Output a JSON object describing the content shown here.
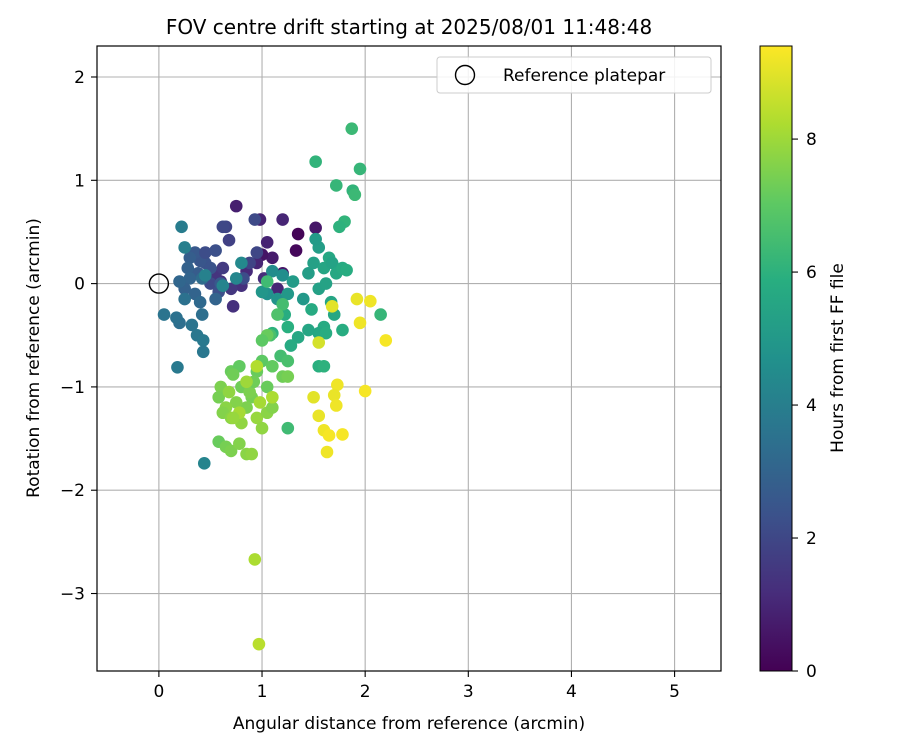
{
  "chart_data": {
    "type": "scatter",
    "title": "FOV centre drift starting at 2025/08/01 11:48:48",
    "xlabel": "Angular distance from reference (arcmin)",
    "ylabel": "Rotation from reference (arcmin)",
    "xlim": [
      -0.6,
      5.45
    ],
    "ylim": [
      -3.75,
      2.3
    ],
    "xticks": [
      0,
      1,
      2,
      3,
      4,
      5
    ],
    "yticks": [
      -3,
      -2,
      -1,
      0,
      1,
      2
    ],
    "xtick_labels": [
      "0",
      "1",
      "2",
      "3",
      "4",
      "5"
    ],
    "ytick_labels": [
      "−3",
      "−2",
      "−1",
      "0",
      "1",
      "2"
    ],
    "grid": true,
    "legend": {
      "position": "top-right",
      "entries": [
        "Reference platepar"
      ]
    },
    "reference_point": {
      "x": 0,
      "y": 0
    },
    "colorbar": {
      "label": "Hours from first FF file",
      "colormap": "viridis",
      "range": [
        0,
        9.4
      ],
      "ticks": [
        0,
        2,
        4,
        6,
        8
      ],
      "tick_labels": [
        "0",
        "2",
        "4",
        "6",
        "8"
      ]
    },
    "points": [
      [
        1.35,
        0.48,
        0.1
      ],
      [
        1.33,
        0.32,
        0.2
      ],
      [
        1.52,
        0.54,
        0.6
      ],
      [
        0.75,
        0.75,
        0.8
      ],
      [
        0.98,
        0.62,
        0.9
      ],
      [
        1.2,
        0.62,
        1.0
      ],
      [
        1.05,
        0.4,
        0.9
      ],
      [
        1.1,
        0.25,
        0.7
      ],
      [
        1.0,
        0.28,
        0.5
      ],
      [
        1.2,
        0.1,
        0.6
      ],
      [
        0.95,
        0.2,
        1.0
      ],
      [
        0.85,
        0.12,
        1.1
      ],
      [
        1.02,
        0.05,
        1.2
      ],
      [
        1.15,
        -0.05,
        1.0
      ],
      [
        0.8,
        -0.02,
        1.3
      ],
      [
        0.7,
        -0.05,
        1.5
      ],
      [
        0.6,
        0.02,
        1.2
      ],
      [
        0.55,
        0.1,
        1.4
      ],
      [
        0.62,
        0.15,
        1.6
      ],
      [
        0.72,
        -0.22,
        1.3
      ],
      [
        0.68,
        0.42,
        1.8
      ],
      [
        0.65,
        0.55,
        1.9
      ],
      [
        0.62,
        0.55,
        2.0
      ],
      [
        0.93,
        0.62,
        2.1
      ],
      [
        0.95,
        0.3,
        2.0
      ],
      [
        0.88,
        0.2,
        1.9
      ],
      [
        0.82,
        0.05,
        2.2
      ],
      [
        0.5,
        0.0,
        2.1
      ],
      [
        0.58,
        -0.08,
        2.3
      ],
      [
        0.45,
        0.2,
        2.4
      ],
      [
        0.4,
        0.22,
        2.5
      ],
      [
        0.38,
        0.1,
        2.7
      ],
      [
        0.35,
        0.3,
        2.6
      ],
      [
        0.3,
        0.25,
        2.8
      ],
      [
        0.28,
        0.15,
        2.9
      ],
      [
        0.3,
        0.05,
        3.0
      ],
      [
        0.25,
        -0.05,
        2.9
      ],
      [
        0.2,
        0.02,
        3.1
      ],
      [
        0.35,
        -0.1,
        3.0
      ],
      [
        0.4,
        -0.18,
        3.2
      ],
      [
        0.55,
        -0.15,
        3.0
      ],
      [
        0.6,
        0.0,
        2.6
      ],
      [
        0.5,
        0.15,
        2.4
      ],
      [
        0.45,
        0.3,
        2.2
      ],
      [
        0.55,
        0.32,
        2.3
      ],
      [
        0.42,
        0.05,
        3.3
      ],
      [
        0.42,
        -0.3,
        3.4
      ],
      [
        0.25,
        -0.15,
        3.5
      ],
      [
        0.32,
        -0.4,
        3.6
      ],
      [
        0.2,
        -0.38,
        3.4
      ],
      [
        0.17,
        -0.33,
        3.5
      ],
      [
        0.05,
        -0.3,
        3.6
      ],
      [
        0.37,
        -0.5,
        3.7
      ],
      [
        0.43,
        -0.55,
        3.8
      ],
      [
        0.43,
        -0.66,
        3.7
      ],
      [
        0.18,
        -0.81,
        3.8
      ],
      [
        0.22,
        0.55,
        3.9
      ],
      [
        0.25,
        0.35,
        4.0
      ],
      [
        0.45,
        0.08,
        4.1
      ],
      [
        0.62,
        -0.02,
        4.2
      ],
      [
        0.75,
        0.05,
        4.3
      ],
      [
        0.8,
        0.2,
        4.4
      ],
      [
        0.44,
        -1.74,
        4.2
      ],
      [
        1.1,
        0.12,
        4.5
      ],
      [
        1.2,
        0.08,
        4.6
      ],
      [
        1.05,
        -0.1,
        4.7
      ],
      [
        1.15,
        -0.15,
        4.8
      ],
      [
        1.0,
        -0.08,
        4.9
      ],
      [
        1.25,
        -0.1,
        5.0
      ],
      [
        1.3,
        0.02,
        5.1
      ],
      [
        1.4,
        -0.15,
        5.0
      ],
      [
        1.45,
        0.1,
        5.2
      ],
      [
        1.55,
        -0.05,
        5.3
      ],
      [
        1.62,
        0.0,
        5.4
      ],
      [
        1.5,
        0.2,
        5.3
      ],
      [
        1.55,
        0.35,
        5.2
      ],
      [
        1.52,
        0.43,
        5.1
      ],
      [
        1.6,
        0.15,
        5.5
      ],
      [
        1.65,
        0.25,
        5.6
      ],
      [
        1.68,
        0.2,
        5.4
      ],
      [
        1.72,
        0.1,
        5.6
      ],
      [
        1.78,
        0.15,
        5.7
      ],
      [
        1.82,
        0.13,
        5.8
      ],
      [
        1.67,
        -0.18,
        5.5
      ],
      [
        1.7,
        -0.3,
        5.6
      ],
      [
        1.6,
        -0.42,
        5.7
      ],
      [
        1.55,
        -0.48,
        5.6
      ],
      [
        1.62,
        -0.48,
        5.8
      ],
      [
        1.78,
        -0.45,
        5.8
      ],
      [
        1.48,
        -0.25,
        5.7
      ],
      [
        1.45,
        -0.45,
        5.5
      ],
      [
        1.35,
        -0.52,
        5.6
      ],
      [
        1.25,
        -0.42,
        5.9
      ],
      [
        1.22,
        -0.3,
        5.8
      ],
      [
        1.28,
        -0.6,
        5.7
      ],
      [
        1.1,
        -0.48,
        6.0
      ],
      [
        1.55,
        -0.8,
        5.9
      ],
      [
        1.6,
        -0.8,
        6.0
      ],
      [
        1.8,
        0.6,
        6.1
      ],
      [
        1.75,
        0.55,
        6.0
      ],
      [
        1.52,
        1.18,
        6.1
      ],
      [
        1.72,
        0.95,
        6.2
      ],
      [
        1.88,
        0.9,
        6.1
      ],
      [
        1.9,
        0.86,
        6.3
      ],
      [
        1.95,
        1.11,
        6.2
      ],
      [
        1.87,
        1.5,
        6.3
      ],
      [
        2.15,
        -0.3,
        6.2
      ],
      [
        1.25,
        -1.4,
        6.4
      ],
      [
        1.18,
        -0.7,
        6.5
      ],
      [
        1.25,
        -0.75,
        6.6
      ],
      [
        1.2,
        -0.2,
        6.5
      ],
      [
        1.05,
        0.02,
        6.4
      ],
      [
        1.15,
        -0.3,
        6.7
      ],
      [
        1.08,
        -0.5,
        6.6
      ],
      [
        1.0,
        -0.75,
        7.0
      ],
      [
        1.1,
        -0.8,
        7.1
      ],
      [
        0.95,
        -0.85,
        7.2
      ],
      [
        1.2,
        -0.9,
        7.3
      ],
      [
        1.05,
        -1.0,
        7.2
      ],
      [
        0.9,
        -1.1,
        7.4
      ],
      [
        0.85,
        -1.2,
        7.5
      ],
      [
        0.8,
        -1.0,
        7.3
      ],
      [
        0.7,
        -0.85,
        7.2
      ],
      [
        0.75,
        -1.15,
        7.6
      ],
      [
        0.65,
        -1.2,
        7.7
      ],
      [
        0.6,
        -1.0,
        7.5
      ],
      [
        0.58,
        -1.1,
        7.4
      ],
      [
        0.62,
        -1.25,
        7.6
      ],
      [
        0.7,
        -1.3,
        7.7
      ],
      [
        0.8,
        -1.35,
        7.8
      ],
      [
        0.95,
        -1.3,
        7.9
      ],
      [
        1.0,
        -1.4,
        7.8
      ],
      [
        1.05,
        -1.25,
        7.7
      ],
      [
        1.1,
        -1.2,
        7.6
      ],
      [
        0.88,
        -1.05,
        7.5
      ],
      [
        0.92,
        -0.95,
        7.3
      ],
      [
        0.78,
        -0.8,
        7.1
      ],
      [
        0.58,
        -1.53,
        7.2
      ],
      [
        0.65,
        -1.58,
        7.4
      ],
      [
        0.7,
        -1.62,
        7.5
      ],
      [
        0.78,
        -1.55,
        7.6
      ],
      [
        0.85,
        -1.65,
        7.7
      ],
      [
        0.9,
        -1.65,
        7.8
      ],
      [
        0.72,
        -0.88,
        7.3
      ],
      [
        1.05,
        -0.5,
        7.2
      ],
      [
        1.0,
        -0.55,
        7.0
      ],
      [
        1.25,
        -0.9,
        7.4
      ],
      [
        0.68,
        -1.05,
        7.8
      ],
      [
        0.85,
        -0.95,
        8.0
      ],
      [
        0.93,
        -2.67,
        8.2
      ],
      [
        0.97,
        -3.49,
        8.4
      ],
      [
        0.98,
        -1.15,
        8.1
      ],
      [
        1.1,
        -1.1,
        8.2
      ],
      [
        0.95,
        -0.8,
        8.3
      ],
      [
        0.78,
        -1.25,
        8.1
      ],
      [
        0.72,
        -1.3,
        7.9
      ],
      [
        1.55,
        -0.57,
        8.8
      ],
      [
        1.68,
        -0.22,
        9.0
      ],
      [
        1.92,
        -0.15,
        9.1
      ],
      [
        2.05,
        -0.17,
        9.2
      ],
      [
        1.95,
        -0.38,
        9.2
      ],
      [
        2.2,
        -0.55,
        9.3
      ],
      [
        2.0,
        -1.04,
        9.3
      ],
      [
        1.73,
        -0.98,
        9.2
      ],
      [
        1.7,
        -1.08,
        9.1
      ],
      [
        1.72,
        -1.18,
        9.2
      ],
      [
        1.5,
        -1.1,
        9.0
      ],
      [
        1.55,
        -1.28,
        9.1
      ],
      [
        1.6,
        -1.42,
        9.2
      ],
      [
        1.65,
        -1.47,
        9.3
      ],
      [
        1.78,
        -1.46,
        9.3
      ],
      [
        1.63,
        -1.63,
        9.2
      ]
    ]
  }
}
